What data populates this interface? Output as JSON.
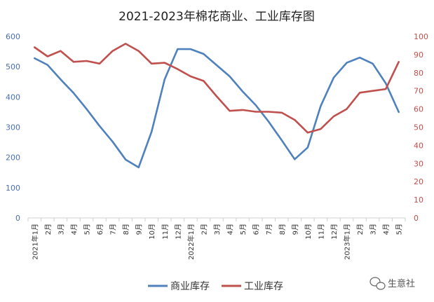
{
  "chart_data": {
    "type": "line",
    "title": "2021-2023年棉花商业、工业库存图",
    "categories": [
      "2021年1月",
      "2月",
      "3月",
      "4月",
      "5月",
      "6月",
      "7月",
      "8月",
      "9月",
      "10月",
      "11月",
      "12月",
      "2022年1月",
      "2月",
      "3月",
      "4月",
      "5月",
      "6月",
      "7月",
      "8月",
      "9月",
      "10月",
      "11月",
      "12月",
      "2023年1月",
      "2月",
      "3月",
      "4月",
      "5月"
    ],
    "series": [
      {
        "name": "商业库存",
        "axis": "left",
        "color": "#4f81bd",
        "values": [
          528,
          506,
          458,
          413,
          360,
          304,
          252,
          193,
          167,
          285,
          458,
          558,
          558,
          542,
          505,
          468,
          418,
          373,
          318,
          257,
          194,
          233,
          370,
          464,
          513,
          530,
          510,
          445,
          350
        ]
      },
      {
        "name": "工业库存",
        "axis": "right",
        "color": "#c0504d",
        "values": [
          94,
          89,
          92,
          86,
          86.5,
          85,
          92,
          96,
          92,
          85,
          85.5,
          82,
          78,
          75.5,
          67,
          59,
          59.5,
          58.5,
          58.5,
          58,
          54,
          47,
          49,
          56,
          60,
          69,
          70,
          71,
          86
        ]
      }
    ],
    "y_left": {
      "lim": [
        0,
        600
      ],
      "ticks": [
        0,
        100,
        200,
        300,
        400,
        500,
        600
      ],
      "color": "#4a6fb0"
    },
    "y_right": {
      "lim": [
        0,
        100
      ],
      "ticks": [
        0,
        10,
        20,
        30,
        40,
        50,
        60,
        70,
        80,
        90,
        100
      ],
      "color": "#c0504d"
    },
    "grid": false,
    "legend": "bottom"
  },
  "watermark": {
    "text": "生意社"
  }
}
